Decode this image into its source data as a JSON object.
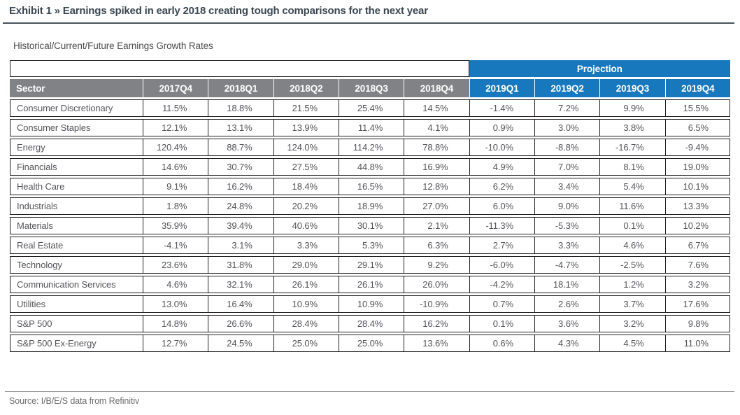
{
  "exhibit": {
    "title": "Exhibit 1 » Earnings spiked in early 2018 creating tough comparisons for the next year",
    "subtitle": "Historical/Current/Future Earnings Growth Rates",
    "source": "Source: I/B/E/S data from Refinitiv"
  },
  "colors": {
    "projection_blue": "#1878be",
    "header_gray": "#808285",
    "border_dark": "#231f20"
  },
  "table": {
    "projection_label": "Projection",
    "sector_header": "Sector",
    "historical_columns": [
      "2017Q4",
      "2018Q1",
      "2018Q2",
      "2018Q3",
      "2018Q4"
    ],
    "projection_columns": [
      "2019Q1",
      "2019Q2",
      "2019Q3",
      "2019Q4"
    ],
    "rows": [
      {
        "sector": "Consumer Discretionary",
        "values": [
          "11.5%",
          "18.8%",
          "21.5%",
          "25.4%",
          "14.5%",
          "-1.4%",
          "7.2%",
          "9.9%",
          "15.5%"
        ]
      },
      {
        "sector": "Consumer Staples",
        "values": [
          "12.1%",
          "13.1%",
          "13.9%",
          "11.4%",
          "4.1%",
          "0.9%",
          "3.0%",
          "3.8%",
          "6.5%"
        ]
      },
      {
        "sector": "Energy",
        "values": [
          "120.4%",
          "88.7%",
          "124.0%",
          "114.2%",
          "78.8%",
          "-10.0%",
          "-8.8%",
          "-16.7%",
          "-9.4%"
        ]
      },
      {
        "sector": "Financials",
        "values": [
          "14.6%",
          "30.7%",
          "27.5%",
          "44.8%",
          "16.9%",
          "4.9%",
          "7.0%",
          "8.1%",
          "19.0%"
        ]
      },
      {
        "sector": "Health Care",
        "values": [
          "9.1%",
          "16.2%",
          "18.4%",
          "16.5%",
          "12.8%",
          "6.2%",
          "3.4%",
          "5.4%",
          "10.1%"
        ]
      },
      {
        "sector": "Industrials",
        "values": [
          "1.8%",
          "24.8%",
          "20.2%",
          "18.9%",
          "27.0%",
          "6.0%",
          "9.0%",
          "11.6%",
          "13.3%"
        ]
      },
      {
        "sector": "Materials",
        "values": [
          "35.9%",
          "39.4%",
          "40.6%",
          "30.1%",
          "2.1%",
          "-11.3%",
          "-5.3%",
          "0.1%",
          "10.2%"
        ]
      },
      {
        "sector": "Real Estate",
        "values": [
          "-4.1%",
          "3.1%",
          "3.3%",
          "5.3%",
          "6.3%",
          "2.7%",
          "3.3%",
          "4.6%",
          "6.7%"
        ]
      },
      {
        "sector": "Technology",
        "values": [
          "23.6%",
          "31.8%",
          "29.0%",
          "29.1%",
          "9.2%",
          "-6.0%",
          "-4.7%",
          "-2.5%",
          "7.6%"
        ]
      },
      {
        "sector": "Communication Services",
        "values": [
          "4.6%",
          "32.1%",
          "26.1%",
          "26.1%",
          "26.0%",
          "-4.2%",
          "18.1%",
          "1.2%",
          "3.2%"
        ]
      },
      {
        "sector": "Utilities",
        "values": [
          "13.0%",
          "16.4%",
          "10.9%",
          "10.9%",
          "-10.9%",
          "0.7%",
          "2.6%",
          "3.7%",
          "17.6%"
        ]
      },
      {
        "sector": "S&P 500",
        "values": [
          "14.8%",
          "26.6%",
          "28.4%",
          "28.4%",
          "16.2%",
          "0.1%",
          "3.6%",
          "3.2%",
          "9.8%"
        ]
      },
      {
        "sector": "S&P 500 Ex-Energy",
        "values": [
          "12.7%",
          "24.5%",
          "25.0%",
          "25.0%",
          "13.6%",
          "0.6%",
          "4.3%",
          "4.5%",
          "11.0%"
        ]
      }
    ]
  }
}
